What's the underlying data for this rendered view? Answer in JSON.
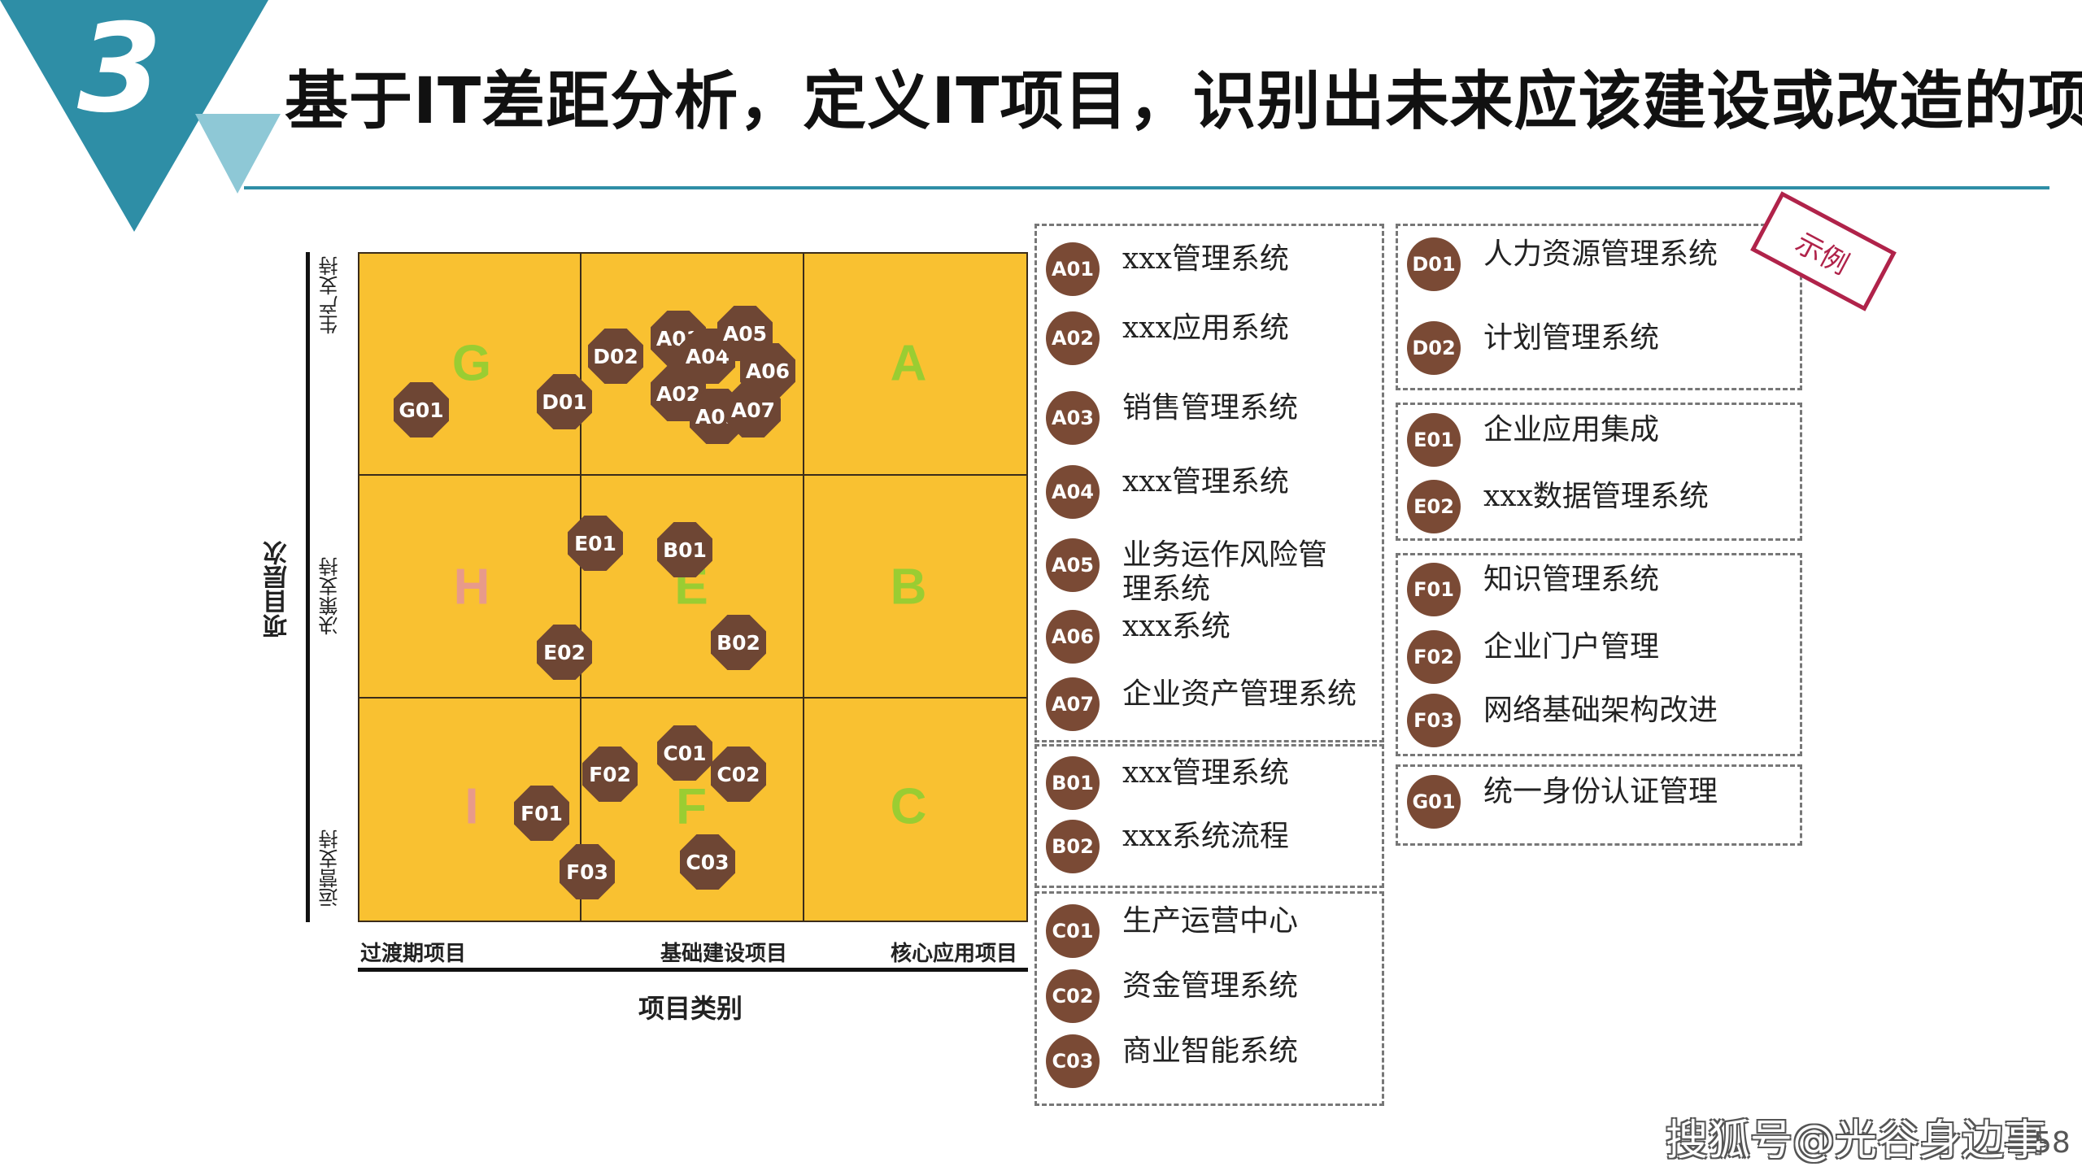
{
  "header": {
    "section_number": "3",
    "title": "基于IT差距分析，定义IT项目，识别出未来应该建设或改造的项目",
    "accent_color": "#2e8ea6",
    "light_accent": "#8ec8d6"
  },
  "matrix": {
    "cell_color": "#f9c131",
    "marker_color": "#6e4634",
    "y_axis": {
      "title": "项目层次",
      "ticks": [
        "生产支持",
        "决策支持",
        "运营支持"
      ]
    },
    "x_axis": {
      "title": "项目类别",
      "ticks": [
        "过渡期项目",
        "基础建设项目",
        "核心应用项目"
      ]
    },
    "cells": [
      {
        "letter": "G",
        "color": "#9acd32"
      },
      {
        "letter": "D",
        "color": "#9acd32"
      },
      {
        "letter": "A",
        "color": "#9acd32"
      },
      {
        "letter": "H",
        "color": "#e89a8a"
      },
      {
        "letter": "E",
        "color": "#9acd32"
      },
      {
        "letter": "B",
        "color": "#9acd32"
      },
      {
        "letter": "I",
        "color": "#e89a8a"
      },
      {
        "letter": "F",
        "color": "#9acd32"
      },
      {
        "letter": "C",
        "color": "#9acd32"
      }
    ],
    "markers": [
      "G01",
      "D01",
      "D02",
      "A01",
      "A02",
      "A03",
      "A04",
      "A05",
      "A06",
      "A07",
      "E01",
      "E02",
      "B01",
      "B02",
      "F01",
      "F02",
      "F03",
      "C01",
      "C02",
      "C03"
    ]
  },
  "legend": {
    "stamp": "示例",
    "groups": [
      {
        "items": [
          {
            "code": "A01",
            "label": "xxx管理系统"
          },
          {
            "code": "A02",
            "label": "xxx应用系统"
          },
          {
            "code": "A03",
            "label": "销售管理系统"
          },
          {
            "code": "A04",
            "label": "xxx管理系统"
          },
          {
            "code": "A05",
            "label": "业务运作风险管理系统"
          },
          {
            "code": "A06",
            "label": "xxx系统"
          },
          {
            "code": "A07",
            "label": "企业资产管理系统"
          }
        ]
      },
      {
        "items": [
          {
            "code": "B01",
            "label": "xxx管理系统"
          },
          {
            "code": "B02",
            "label": "xxx系统流程"
          }
        ]
      },
      {
        "items": [
          {
            "code": "C01",
            "label": "生产运营中心"
          },
          {
            "code": "C02",
            "label": "资金管理系统"
          },
          {
            "code": "C03",
            "label": "商业智能系统"
          }
        ]
      },
      {
        "items": [
          {
            "code": "D01",
            "label": "人力资源管理系统"
          },
          {
            "code": "D02",
            "label": "计划管理系统"
          }
        ]
      },
      {
        "items": [
          {
            "code": "E01",
            "label": "企业应用集成"
          },
          {
            "code": "E02",
            "label": "xxx数据管理系统"
          }
        ]
      },
      {
        "items": [
          {
            "code": "F01",
            "label": "知识管理系统"
          },
          {
            "code": "F02",
            "label": "企业门户管理"
          },
          {
            "code": "F03",
            "label": "网络基础架构改进"
          }
        ]
      },
      {
        "items": [
          {
            "code": "G01",
            "label": "统一身份认证管理"
          }
        ]
      }
    ]
  },
  "footer": {
    "watermark": "搜狐号@光谷身边事",
    "page_number": "58"
  }
}
